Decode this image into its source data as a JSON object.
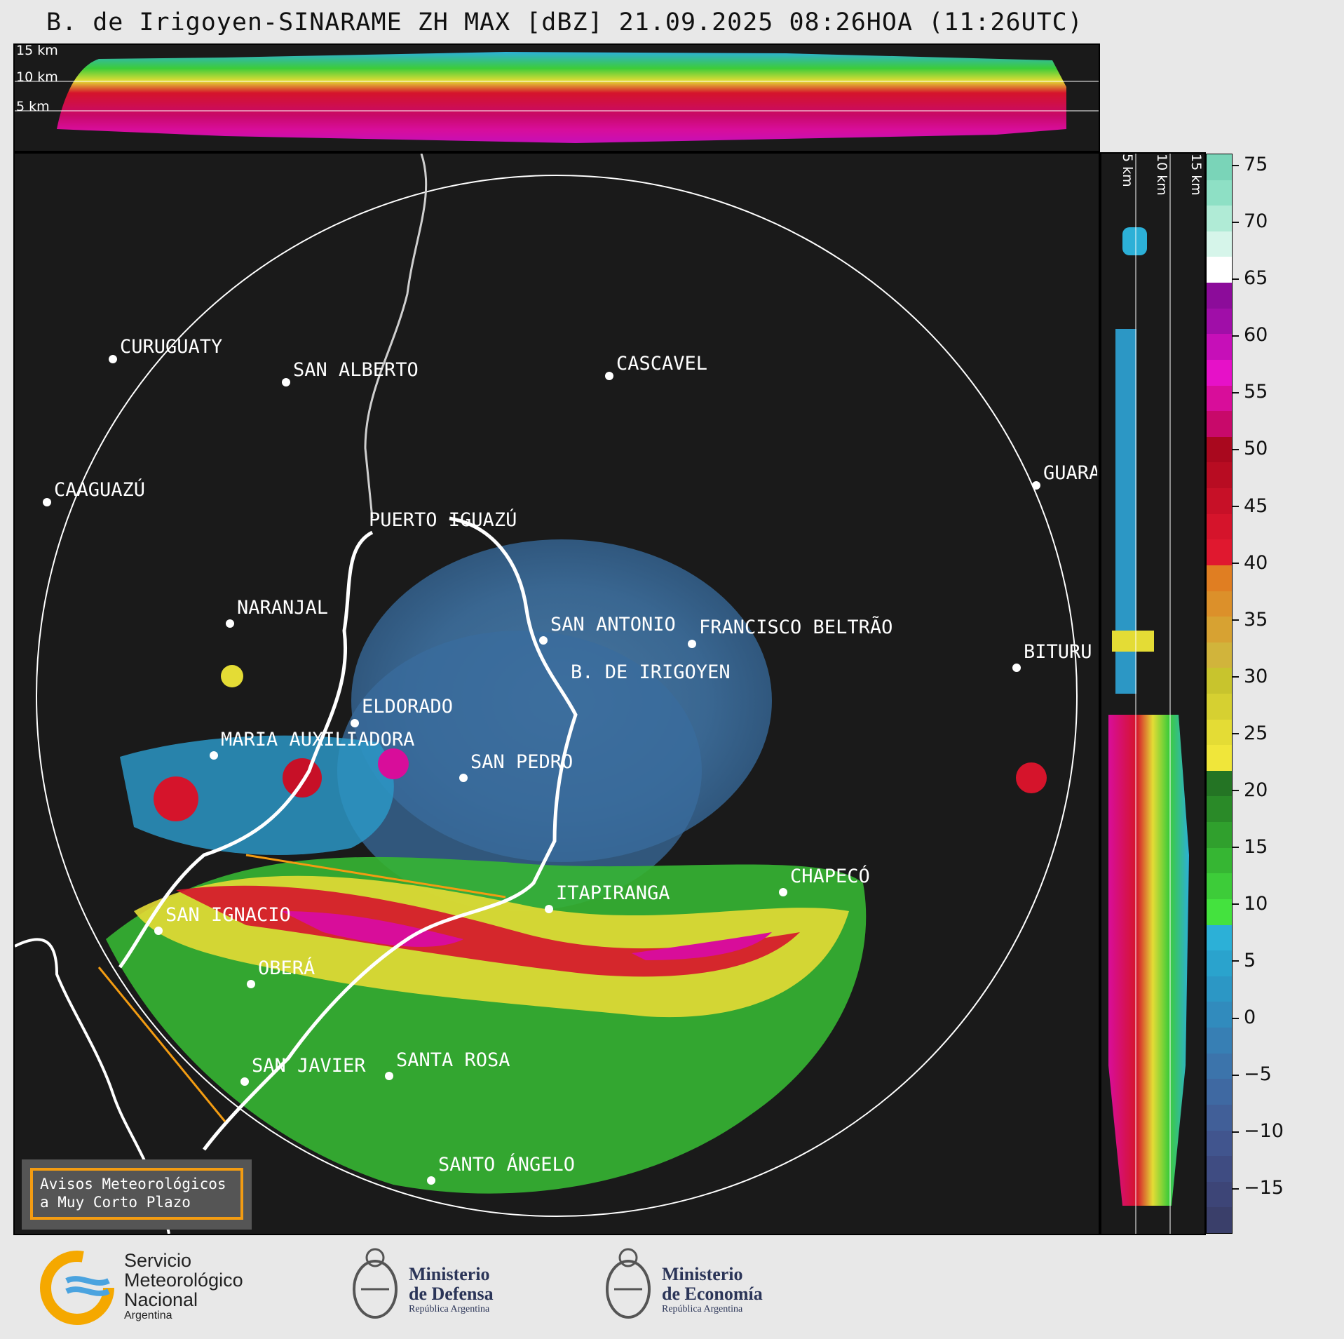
{
  "title": "B. de Irigoyen-SINARAME ZH MAX [dBZ] 21.09.2025 08:26HOA (11:26UTC)",
  "top_panel": {
    "height_labels": [
      "15 km",
      "10 km",
      "5 km"
    ]
  },
  "side_panel": {
    "height_labels": [
      "5 km",
      "10 km",
      "15 km"
    ]
  },
  "colorbar": {
    "unit": "dBZ",
    "range": [
      -19,
      76
    ],
    "ticks": [
      "75",
      "70",
      "65",
      "60",
      "55",
      "50",
      "45",
      "40",
      "35",
      "30",
      "25",
      "20",
      "15",
      "10",
      "5",
      "0",
      "−5",
      "−10",
      "−15"
    ],
    "colors": [
      "#3a3f6a",
      "#3d4577",
      "#3f4c82",
      "#41558e",
      "#415f98",
      "#3f69a2",
      "#3c74ab",
      "#377fb4",
      "#318bbd",
      "#2c97c5",
      "#2aa3cd",
      "#2cb0d7",
      "#44e23e",
      "#3dcc39",
      "#36b633",
      "#30a02d",
      "#2a8a28",
      "#247424",
      "#f0e63a",
      "#e4dc35",
      "#d6d031",
      "#c8c42d",
      "#d1b43b",
      "#d7a232",
      "#dc902a",
      "#e07e22",
      "#e0182f",
      "#d5142b",
      "#c71027",
      "#b80c22",
      "#a9081e",
      "#c8096a",
      "#d80d9a",
      "#e611c8",
      "#c60fb8",
      "#a00ea8",
      "#8c0c9a",
      "#ffffff",
      "#d6f5ea",
      "#b0ebd6",
      "#8ee0c5",
      "#7ad4b8"
    ]
  },
  "cities": [
    {
      "name": "CURUGUATY"
    },
    {
      "name": "SAN ALBERTO"
    },
    {
      "name": "CASCAVEL"
    },
    {
      "name": "CAAGUAZÚ"
    },
    {
      "name": "GUARA"
    },
    {
      "name": "PUERTO IGUAZÚ"
    },
    {
      "name": "NARANJAL"
    },
    {
      "name": "SAN ANTONIO"
    },
    {
      "name": "FRANCISCO BELTRÃO"
    },
    {
      "name": "BITURU"
    },
    {
      "name": "B. DE IRIGOYEN"
    },
    {
      "name": "ELDORADO"
    },
    {
      "name": "MARIA AUXILIADORA"
    },
    {
      "name": "SAN PEDRO"
    },
    {
      "name": "CHAPECÓ"
    },
    {
      "name": "ITAPIRANGA"
    },
    {
      "name": "SAN IGNACIO"
    },
    {
      "name": "OBERÁ"
    },
    {
      "name": "SAN JAVIER"
    },
    {
      "name": "SANTA ROSA"
    },
    {
      "name": "SANTO ÁNGELO"
    }
  ],
  "avisos": {
    "line1": "Avisos Meteorológicos",
    "line2": "a Muy Corto Plazo"
  },
  "footer": {
    "smn": {
      "line1": "Servicio",
      "line2": "Meteorológico",
      "line3": "Nacional",
      "line4": "Argentina"
    },
    "defensa": {
      "line1": "Ministerio",
      "line2": "de Defensa",
      "line3": "República Argentina"
    },
    "economia": {
      "line1": "Ministerio",
      "line2": "de Economía",
      "line3": "República Argentina"
    }
  }
}
